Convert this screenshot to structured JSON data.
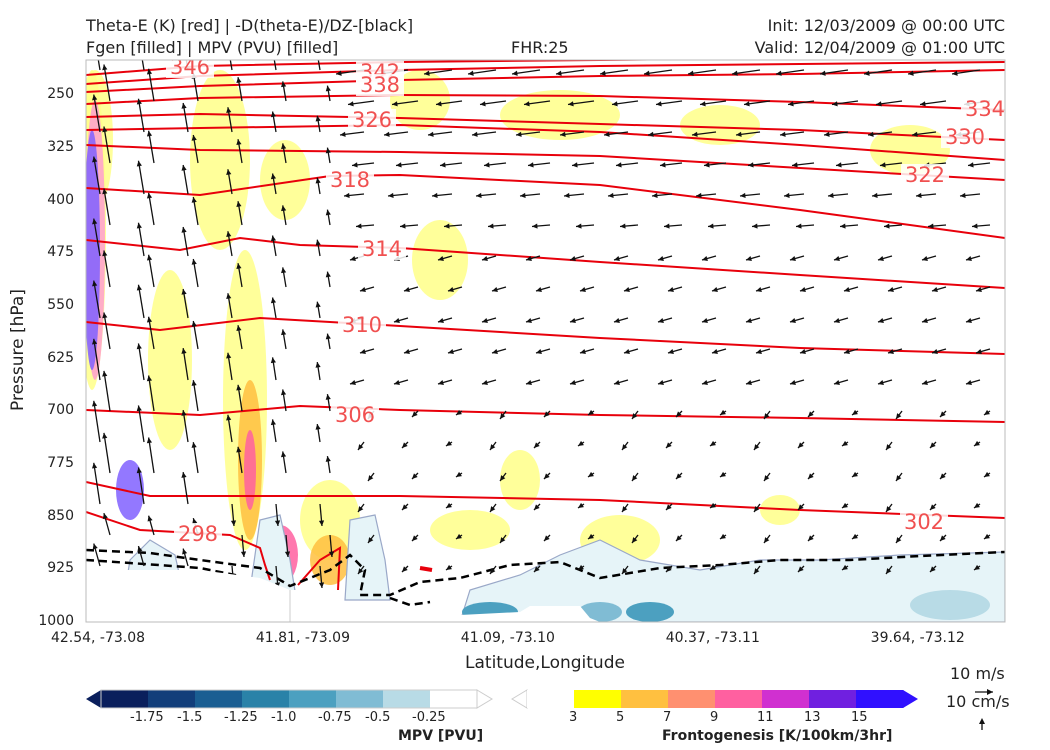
{
  "header": {
    "title_line1": "Theta-E (K) [red] | -D(theta-E)/DZ-[black]",
    "title_line2": "Fgen [filled] | MPV (PVU) [filled]",
    "fhr": "FHR:25",
    "init": "Init: 12/03/2009 @ 00:00 UTC",
    "valid": "Valid: 12/04/2009 @ 01:00 UTC"
  },
  "chart_data": {
    "type": "cross-section",
    "xlabel": "Latitude,Longitude",
    "ylabel": "Pressure [hPa]",
    "ylim": [
      1000,
      200
    ],
    "x_ticks": [
      "42.54, -73.08",
      "41.81, -73.09",
      "41.09, -73.10",
      "40.37, -73.11",
      "39.64, -73.12"
    ],
    "y_ticks": [
      250,
      325,
      400,
      475,
      550,
      625,
      700,
      775,
      850,
      925,
      1000
    ],
    "theta_e_contours": [
      {
        "label": "346"
      },
      {
        "label": "342"
      },
      {
        "label": "338"
      },
      {
        "label": "334"
      },
      {
        "label": "330"
      },
      {
        "label": "326"
      },
      {
        "label": "322"
      },
      {
        "label": "318"
      },
      {
        "label": "314"
      },
      {
        "label": "310"
      },
      {
        "label": "306"
      },
      {
        "label": "302"
      },
      {
        "label": "298"
      }
    ],
    "colors": {
      "theta_e": "#e8000b",
      "label_red": "#f05050",
      "dthetae": "#000000",
      "wind": "#111111",
      "axis_frame": "#bbbbbb",
      "terrain": "#ffffff"
    },
    "fgen_colorbar": {
      "label": "Frontogenesis [K/100km/3hr]",
      "ticks": [
        "3",
        "5",
        "7",
        "9",
        "11",
        "13",
        "15"
      ],
      "colors": [
        "#ffffff",
        "#ffff00",
        "#ffc040",
        "#ff9070",
        "#ff60a0",
        "#d030d0",
        "#7020e0",
        "#3010ff"
      ]
    },
    "mpv_colorbar": {
      "label": "MPV [PVU]",
      "ticks": [
        "-1.75",
        "-1.5",
        "-1.25",
        "-1.0",
        "-0.75",
        "-0.5",
        "-0.25"
      ],
      "colors": [
        "#0a1f5c",
        "#123e7a",
        "#1a5e92",
        "#2a82a8",
        "#4ca0c0",
        "#80bcd4",
        "#b8dbe6",
        "#ffffff"
      ]
    },
    "wind_key": {
      "label1": "10 m/s",
      "label2": "10 cm/s"
    }
  }
}
